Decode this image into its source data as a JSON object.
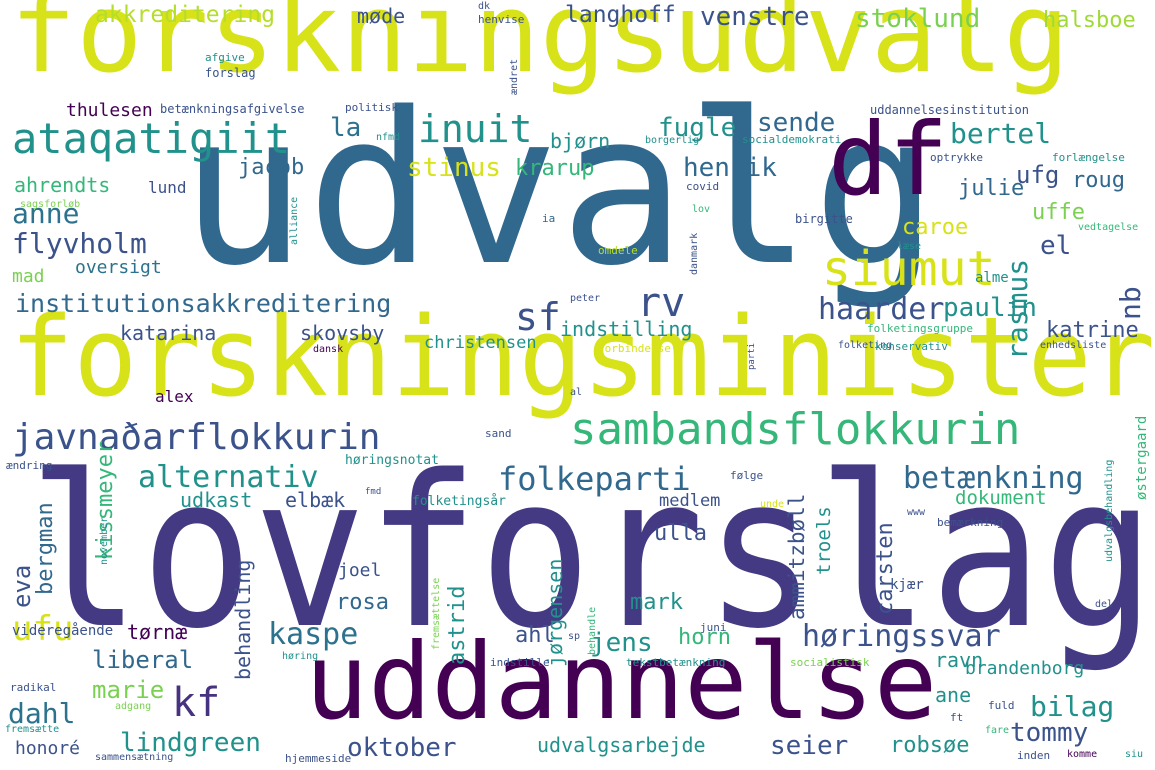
{
  "cloud": {
    "words": [
      {
        "text": "forskningsudvalg",
        "color": "#d8e219"
      },
      {
        "text": "udvalg",
        "color": "#31688e"
      },
      {
        "text": "df",
        "color": "#440154"
      },
      {
        "text": "forskningsminister",
        "color": "#d8e219"
      },
      {
        "text": "lovforslag",
        "color": "#443a83"
      },
      {
        "text": "uddannelse",
        "color": "#440154"
      },
      {
        "text": "sambandsflokkurin",
        "color": "#35b779"
      },
      {
        "text": "siumut",
        "color": "#d8e219"
      },
      {
        "text": "ataqatigiit",
        "color": "#21918c"
      },
      {
        "text": "inuit",
        "color": "#21918c"
      },
      {
        "text": "javnaðarflokkurin",
        "color": "#3b528b"
      },
      {
        "text": "institutionsakkreditering",
        "color": "#31688e"
      },
      {
        "text": "folkeparti",
        "color": "#31688e"
      },
      {
        "text": "alternativ",
        "color": "#21918c"
      },
      {
        "text": "betænkning",
        "color": "#31688e"
      },
      {
        "text": "kaspe",
        "color": "#2c728e"
      },
      {
        "text": "høringssvar",
        "color": "#3b528b"
      },
      {
        "text": "kf",
        "color": "#46327e"
      },
      {
        "text": "rv",
        "color": "#3b528b"
      },
      {
        "text": "sf",
        "color": "#3b528b"
      },
      {
        "text": "anne",
        "color": "#2c728e"
      },
      {
        "text": "flyvholm",
        "color": "#3b528b"
      },
      {
        "text": "henrik",
        "color": "#31688e"
      },
      {
        "text": "haarder",
        "color": "#3b528b"
      },
      {
        "text": "rasmus",
        "color": "#21918c"
      },
      {
        "text": "nb",
        "color": "#3b528b"
      },
      {
        "text": "paulin",
        "color": "#21918c"
      },
      {
        "text": "bertel",
        "color": "#21918c"
      },
      {
        "text": "ufg",
        "color": "#3b528b"
      },
      {
        "text": "el",
        "color": "#3b528b"
      },
      {
        "text": "uffe",
        "color": "#7ad151"
      },
      {
        "text": "julie",
        "color": "#31688e"
      },
      {
        "text": "roug",
        "color": "#31688e"
      },
      {
        "text": "katrine",
        "color": "#3b528b"
      },
      {
        "text": "stinus",
        "color": "#d8e219"
      },
      {
        "text": "krarup",
        "color": "#35b779"
      },
      {
        "text": "sende",
        "color": "#31688e"
      },
      {
        "text": "fugle",
        "color": "#21918c"
      },
      {
        "text": "la",
        "color": "#2c728e"
      },
      {
        "text": "jacob",
        "color": "#31688e"
      },
      {
        "text": "bjørn",
        "color": "#21918c"
      },
      {
        "text": "akkreditering",
        "color": "#b5de2b"
      },
      {
        "text": "møde",
        "color": "#3b528b"
      },
      {
        "text": "langhoff",
        "color": "#3b528b"
      },
      {
        "text": "venstre",
        "color": "#3b528b"
      },
      {
        "text": "stoklund",
        "color": "#7ad151"
      },
      {
        "text": "halsboe",
        "color": "#a0da39"
      },
      {
        "text": "thulesen",
        "color": "#440154"
      },
      {
        "text": "ahrendts",
        "color": "#35b779"
      },
      {
        "text": "lund",
        "color": "#3b528b"
      },
      {
        "text": "mad",
        "color": "#7ad151"
      },
      {
        "text": "oversigt",
        "color": "#2c728e"
      },
      {
        "text": "katarina",
        "color": "#3b528b"
      },
      {
        "text": "skovsby",
        "color": "#3b528b"
      },
      {
        "text": "indstilling",
        "color": "#21918c"
      },
      {
        "text": "christensen",
        "color": "#21918c"
      },
      {
        "text": "caroe",
        "color": "#d8e219"
      },
      {
        "text": "alex",
        "color": "#440154"
      },
      {
        "text": "elbæk",
        "color": "#3b528b"
      },
      {
        "text": "udkast",
        "color": "#21918c"
      },
      {
        "text": "eva",
        "color": "#3b528b"
      },
      {
        "text": "bergman",
        "color": "#31688e"
      },
      {
        "text": "kissmeyer",
        "color": "#35b779"
      },
      {
        "text": "behandling",
        "color": "#3b528b"
      },
      {
        "text": "ammitzbøll",
        "color": "#3b528b"
      },
      {
        "text": "carsten",
        "color": "#3b528b"
      },
      {
        "text": "troels",
        "color": "#21918c"
      },
      {
        "text": "dokument",
        "color": "#35b779"
      },
      {
        "text": "medlem",
        "color": "#3b528b"
      },
      {
        "text": "ulla",
        "color": "#3b528b"
      },
      {
        "text": "joel",
        "color": "#3b528b"
      },
      {
        "text": "rosa",
        "color": "#31688e"
      },
      {
        "text": "astrid",
        "color": "#21918c"
      },
      {
        "text": "jørgensen",
        "color": "#21918c"
      },
      {
        "text": "mark",
        "color": "#21918c"
      },
      {
        "text": "ahl",
        "color": "#3b528b"
      },
      {
        "text": "jens",
        "color": "#21918c"
      },
      {
        "text": "horn",
        "color": "#35b779"
      },
      {
        "text": "tørnæ",
        "color": "#440154"
      },
      {
        "text": "ufu",
        "color": "#d8e219"
      },
      {
        "text": "liberal",
        "color": "#31688e"
      },
      {
        "text": "marie",
        "color": "#7ad151"
      },
      {
        "text": "dahl",
        "color": "#2c728e"
      },
      {
        "text": "lindgreen",
        "color": "#21918c"
      },
      {
        "text": "oktober",
        "color": "#3b528b"
      },
      {
        "text": "udvalgsarbejde",
        "color": "#21918c"
      },
      {
        "text": "seier",
        "color": "#3b528b"
      },
      {
        "text": "robsøe",
        "color": "#21918c"
      },
      {
        "text": "tommy",
        "color": "#3b528b"
      },
      {
        "text": "bilag",
        "color": "#21918c"
      },
      {
        "text": "ane",
        "color": "#21918c"
      },
      {
        "text": "ravn",
        "color": "#21918c"
      },
      {
        "text": "brandenborg",
        "color": "#21918c"
      },
      {
        "text": "honoré",
        "color": "#3b528b"
      },
      {
        "text": "videregående",
        "color": "#3b528b"
      },
      {
        "text": "østergaard",
        "color": "#35b779"
      },
      {
        "text": "kjær",
        "color": "#3b528b"
      },
      {
        "text": "dk",
        "color": "#3b528b"
      },
      {
        "text": "henvise",
        "color": "#3b528b"
      },
      {
        "text": "ændret",
        "color": "#3b528b"
      },
      {
        "text": "afgive",
        "color": "#21918c"
      },
      {
        "text": "forslag",
        "color": "#3b528b"
      },
      {
        "text": "betænkningsafgivelse",
        "color": "#3b528b"
      },
      {
        "text": "politisk",
        "color": "#3b528b"
      },
      {
        "text": "uddannelsesinstitution",
        "color": "#3b528b"
      },
      {
        "text": "nfmd",
        "color": "#21918c"
      },
      {
        "text": "borgerlig",
        "color": "#21918c"
      },
      {
        "text": "socialdemokrati",
        "color": "#21918c"
      },
      {
        "text": "optrykke",
        "color": "#3b528b"
      },
      {
        "text": "forlængelse",
        "color": "#21918c"
      },
      {
        "text": "covid",
        "color": "#3b528b"
      },
      {
        "text": "lov",
        "color": "#35b779"
      },
      {
        "text": "sagsforløb",
        "color": "#7ad151"
      },
      {
        "text": "alliance",
        "color": "#21918c"
      },
      {
        "text": "ia",
        "color": "#31688e"
      },
      {
        "text": "birgitte",
        "color": "#3b528b"
      },
      {
        "text": "vedtagelse",
        "color": "#35b779"
      },
      {
        "text": "danmark",
        "color": "#3b528b"
      },
      {
        "text": "læse",
        "color": "#21918c"
      },
      {
        "text": "omdele",
        "color": "#b5de2b"
      },
      {
        "text": "alme",
        "color": "#21918c"
      },
      {
        "text": "peter",
        "color": "#3b528b"
      },
      {
        "text": "dansk",
        "color": "#440154"
      },
      {
        "text": "forbindelse",
        "color": "#d8e219"
      },
      {
        "text": "folketingsgruppe",
        "color": "#35b779"
      },
      {
        "text": "folketing",
        "color": "#3b528b"
      },
      {
        "text": "konservativ",
        "color": "#21918c"
      },
      {
        "text": "enhedsliste",
        "color": "#3b528b"
      },
      {
        "text": "al",
        "color": "#3b528b"
      },
      {
        "text": "parti",
        "color": "#3b528b"
      },
      {
        "text": "sand",
        "color": "#3b528b"
      },
      {
        "text": "ændring",
        "color": "#3b528b"
      },
      {
        "text": "høringsnotat",
        "color": "#21918c"
      },
      {
        "text": "fmd",
        "color": "#3b528b"
      },
      {
        "text": "folketingsår",
        "color": "#21918c"
      },
      {
        "text": "følge",
        "color": "#3b528b"
      },
      {
        "text": "unde",
        "color": "#d8e219"
      },
      {
        "text": "www",
        "color": "#3b528b"
      },
      {
        "text": "november",
        "color": "#21918c"
      },
      {
        "text": "bemærkning",
        "color": "#3b528b"
      },
      {
        "text": "udvalgsbehandling",
        "color": "#21918c"
      },
      {
        "text": "del",
        "color": "#3b528b"
      },
      {
        "text": "fremsættelse",
        "color": "#7ad151"
      },
      {
        "text": "behandle",
        "color": "#35b779"
      },
      {
        "text": "juni",
        "color": "#3b528b"
      },
      {
        "text": "sp",
        "color": "#3b528b"
      },
      {
        "text": "høring",
        "color": "#21918c"
      },
      {
        "text": "indstille",
        "color": "#3b528b"
      },
      {
        "text": "tekstbetænkning",
        "color": "#21918c"
      },
      {
        "text": "socialistisk",
        "color": "#7ad151"
      },
      {
        "text": "radikal",
        "color": "#3b528b"
      },
      {
        "text": "adgang",
        "color": "#7ad151"
      },
      {
        "text": "fremsætte",
        "color": "#21918c"
      },
      {
        "text": "sammensætning",
        "color": "#3b528b"
      },
      {
        "text": "hjemmeside",
        "color": "#3b528b"
      },
      {
        "text": "ft",
        "color": "#3b528b"
      },
      {
        "text": "fare",
        "color": "#35b779"
      },
      {
        "text": "fuld",
        "color": "#3b528b"
      },
      {
        "text": "inden",
        "color": "#3b528b"
      },
      {
        "text": "komme",
        "color": "#440154"
      },
      {
        "text": "siu",
        "color": "#21918c"
      }
    ]
  }
}
